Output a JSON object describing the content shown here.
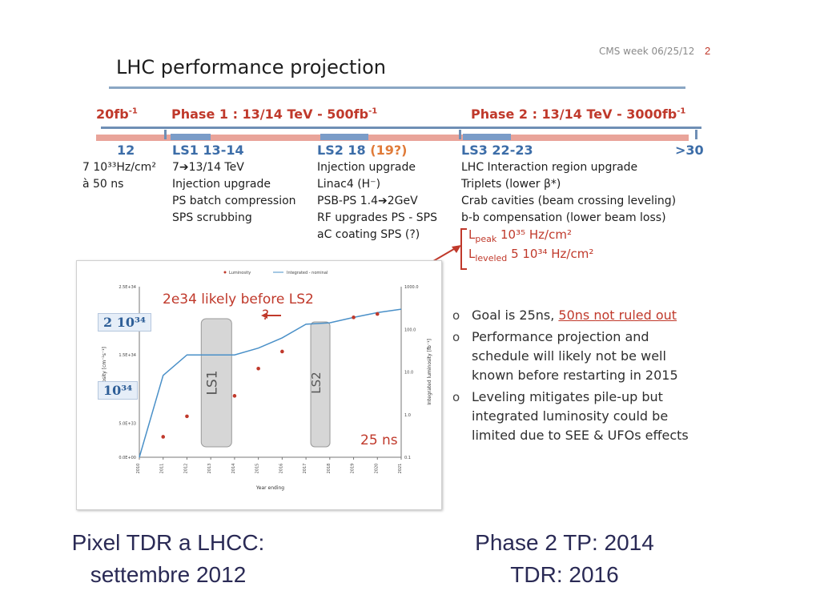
{
  "header": {
    "meeting": "CMS week 06/25/12",
    "slide_number": "2"
  },
  "title": "LHC performance projection",
  "phases": {
    "start": "20fb",
    "start_sup": "-1",
    "phase1": "Phase 1 : 13/14 TeV - 500fb",
    "phase1_sup": "-1",
    "phase2": "Phase 2 : 13/14 TeV - 3000fb",
    "phase2_sup": "-1"
  },
  "columns": {
    "c12": {
      "head": "12",
      "lines": [
        "7 10³³Hz/cm²",
        "à 50 ns"
      ]
    },
    "ls1": {
      "head": "LS1 13-14",
      "lines": [
        "7➔13/14 TeV",
        "Injection upgrade",
        "PS batch compression",
        "SPS scrubbing"
      ]
    },
    "ls2": {
      "head": "LS2 18",
      "head_extra": "(19?)",
      "lines": [
        "Injection upgrade",
        "Linac4 (H⁻)",
        "PSB-PS 1.4➔2GeV",
        "RF upgrades PS - SPS",
        "aC coating SPS (?)"
      ]
    },
    "ls3": {
      "head": "LS3 22-23",
      "lines": [
        "LHC Interaction region upgrade",
        "Triplets (lower β*)",
        "Crab cavities (beam crossing leveling)",
        "b-b compensation (lower beam loss)"
      ]
    },
    "end": {
      "head": ">30"
    }
  },
  "lumi": {
    "peak_label": "L",
    "peak_sub": "peak",
    "peak_value": "10³⁵ Hz/cm²",
    "leveled_label": "L",
    "leveled_sub": "leveled",
    "leveled_value": "5 10³⁴ Hz/cm²"
  },
  "chart_annotations": {
    "likely": "2e34 likely before LS2",
    "question": "?",
    "two_e34": "2 10³⁴",
    "one_e34": "10³⁴",
    "ls1": "LS1",
    "ls2": "LS2",
    "ns25": "25 ns",
    "legend_lumi": "Luminosity",
    "legend_int": "Integrated - nominal",
    "xlabel": "Year ending",
    "ylabel_left": "Luminosity [cm⁻²s⁻¹]",
    "ylabel_right": "Integrated luminosity [fb⁻¹]"
  },
  "chart_data": {
    "type": "scatter",
    "x_ticks": [
      "2010",
      "2011",
      "2012",
      "2013",
      "2014",
      "2015",
      "2016",
      "2017",
      "2018",
      "2019",
      "2020",
      "2021"
    ],
    "y_left_ticks": [
      "0.0E+00",
      "5.0E+33",
      "1.0E+34",
      "1.5E+34",
      "2.0E+34",
      "2.5E+34"
    ],
    "y_right_ticks": [
      "0.1",
      "1.0",
      "10.0",
      "100.0",
      "1000.0"
    ],
    "series": [
      {
        "name": "Luminosity",
        "x": [
          2011,
          2012,
          2014,
          2015,
          2016,
          2019,
          2020
        ],
        "y": [
          0.3,
          0.6,
          0.9,
          1.3,
          1.55,
          2.05,
          2.1
        ]
      },
      {
        "name": "Integrated - nominal",
        "x": [
          2010,
          2011,
          2012,
          2013,
          2014,
          2015,
          2016,
          2017,
          2018,
          2019,
          2020,
          2021
        ],
        "y": [
          0,
          1.2,
          1.5,
          1.5,
          1.5,
          1.6,
          1.75,
          1.95,
          1.97,
          2.05,
          2.12,
          2.17
        ]
      }
    ],
    "ylim_left": [
      0,
      2.5
    ],
    "ylim_left_unit": "1e34",
    "grid": false,
    "legend": "top"
  },
  "bullets": [
    {
      "text": "Goal is 25ns, ",
      "highlight": "50ns not ruled out"
    },
    {
      "text": "Performance projection and schedule will likely not be well known before restarting in 2015"
    },
    {
      "text": "Leveling mitigates pile-up but integrated luminosity could be limited due to SEE & UFOs effects"
    }
  ],
  "bottom_left": [
    "Pixel TDR a LHCC:",
    "settembre 2012"
  ],
  "bottom_right": [
    "Phase 2 TP: 2014",
    "TDR: 2016"
  ],
  "colors": {
    "accent_red": "#c0392b",
    "accent_blue": "#3c6da8",
    "timeline": "#e9a49a"
  }
}
